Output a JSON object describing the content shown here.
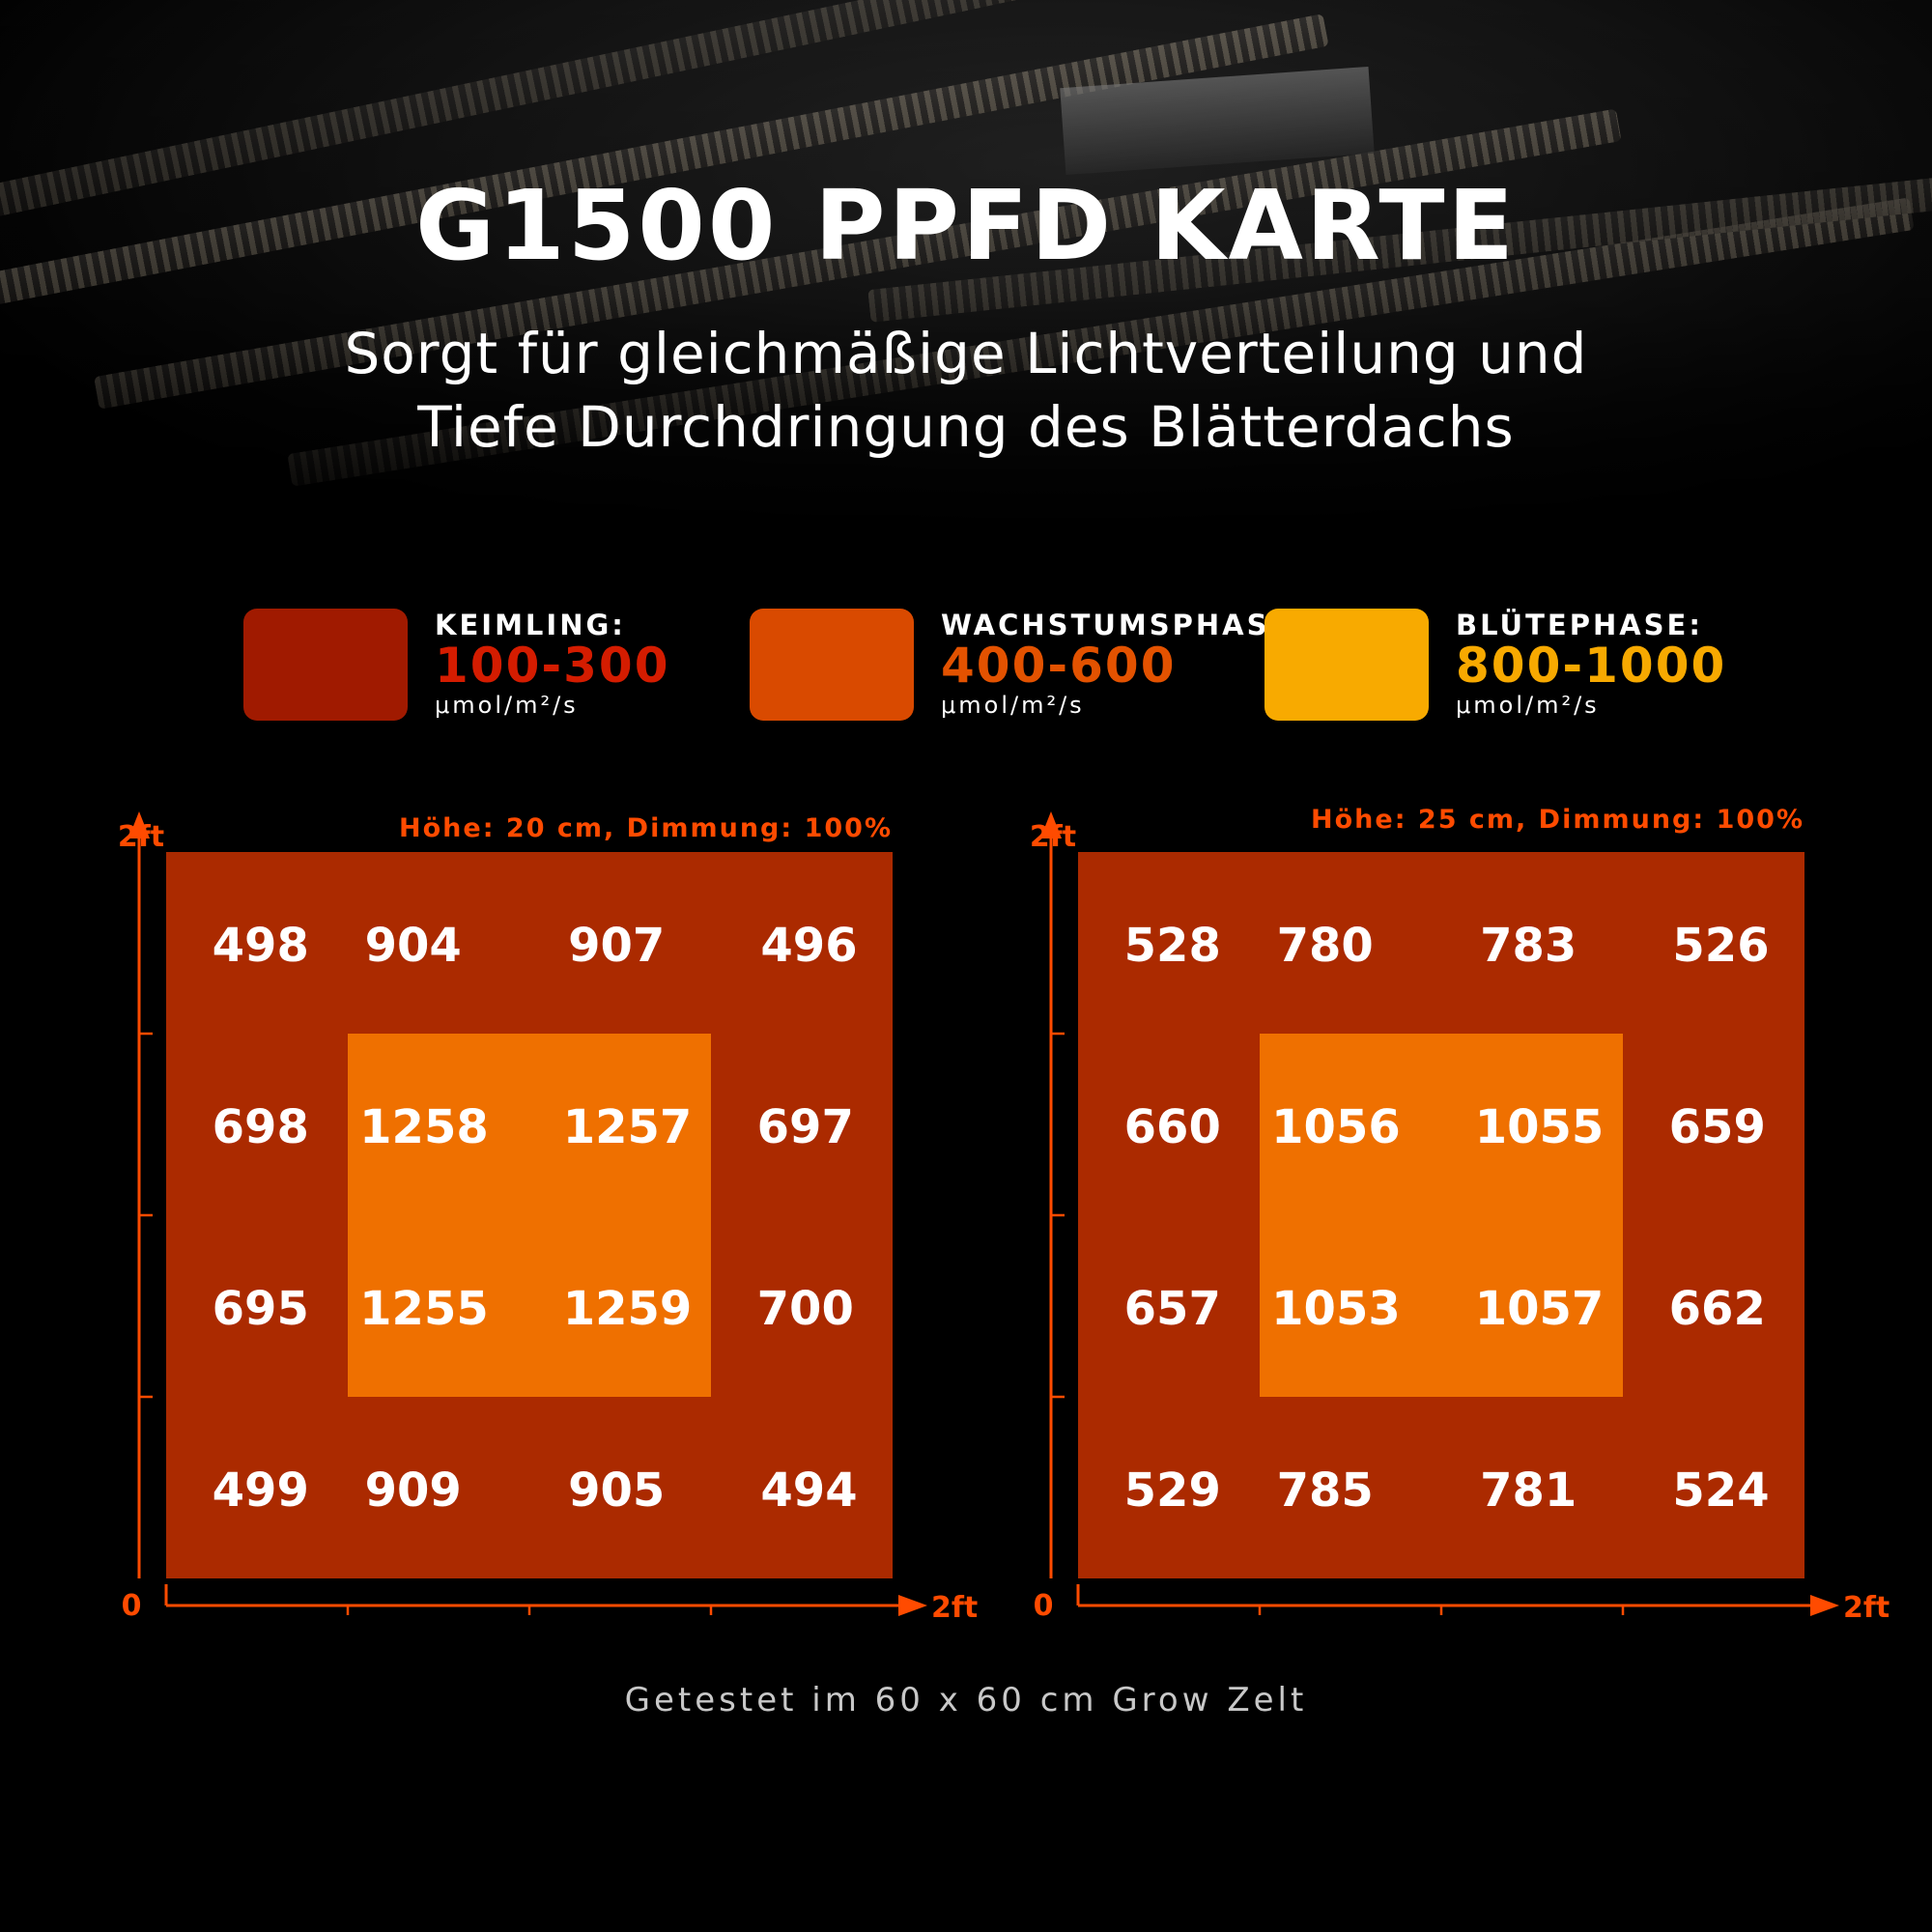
{
  "title": "G1500 PPFD KARTE",
  "subtitle": [
    "Sorgt für gleichmäßige Lichtverteilung und",
    "Tiefe Durchdringung des Blätterdachs"
  ],
  "legend": [
    {
      "label": "KEIMLING:",
      "range": "100-300",
      "unit": "μmol/m²/s",
      "swatch_color": "#a01a00",
      "range_color": "#d41c00"
    },
    {
      "label": "WACHSTUMSPHASE:",
      "range": "400-600",
      "unit": "μmol/m²/s",
      "swatch_color": "#d94a00",
      "range_color": "#e35200"
    },
    {
      "label": "BLÜTEPHASE:",
      "range": "800-1000",
      "unit": "μmol/m²/s",
      "swatch_color": "#f8aa00",
      "range_color": "#f7a900"
    }
  ],
  "chart_data": [
    {
      "type": "heatmap",
      "title": "Höhe: 20 cm, Dimmung: 100%",
      "x_axis": {
        "start_label": "0",
        "end_label": "2ft"
      },
      "y_axis": {
        "end_label": "2ft"
      },
      "values": [
        [
          498,
          904,
          907,
          496
        ],
        [
          698,
          1258,
          1257,
          697
        ],
        [
          695,
          1255,
          1259,
          700
        ],
        [
          499,
          909,
          905,
          494
        ]
      ]
    },
    {
      "type": "heatmap",
      "title": "Höhe: 25 cm, Dimmung: 100%",
      "x_axis": {
        "start_label": "0",
        "end_label": "2ft"
      },
      "y_axis": {
        "end_label": "2ft"
      },
      "values": [
        [
          528,
          780,
          783,
          526
        ],
        [
          660,
          1056,
          1055,
          659
        ],
        [
          657,
          1053,
          1057,
          662
        ],
        [
          529,
          785,
          781,
          524
        ]
      ]
    }
  ],
  "colors": {
    "outer_zone": "#ab2a00",
    "center_zone": "#ef7000",
    "axis": "#ff4b00",
    "annotation": "#ff4b00"
  },
  "caption": "Getestet im 60 x 60 cm Grow Zelt"
}
